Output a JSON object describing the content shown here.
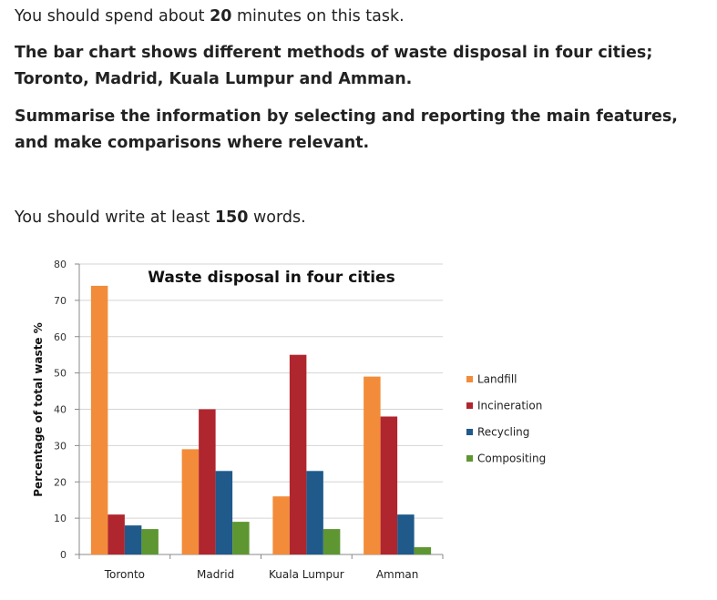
{
  "intro": {
    "before": "You should spend about ",
    "minutes": "20",
    "after": " minutes on this task."
  },
  "task": {
    "line1": "The bar chart shows different methods of waste disposal in four cities; Toronto, Madrid, Kuala Lumpur and Amman.",
    "line2": "Summarise the information by selecting and reporting the main features, and make comparisons where relevant."
  },
  "words": {
    "before": "You should write at least ",
    "count": "150",
    "after": " words."
  },
  "chart_data": {
    "type": "bar",
    "title": "Waste disposal in four cities",
    "xlabel": "",
    "ylabel": "Percentage of total waste %",
    "ylim": [
      0,
      80
    ],
    "yticks": [
      0,
      10,
      20,
      30,
      40,
      50,
      60,
      70,
      80
    ],
    "grid": true,
    "legend_position": "right",
    "categories": [
      "Toronto",
      "Madrid",
      "Kuala Lumpur",
      "Amman"
    ],
    "series": [
      {
        "name": "Landfill",
        "color": "#F28C3A",
        "values": [
          74,
          29,
          16,
          49
        ]
      },
      {
        "name": "Incineration",
        "color": "#B0262E",
        "values": [
          11,
          40,
          55,
          38
        ]
      },
      {
        "name": "Recycling",
        "color": "#1F5A8B",
        "values": [
          8,
          23,
          23,
          11
        ]
      },
      {
        "name": "Compositing",
        "color": "#5E9632",
        "values": [
          7,
          9,
          7,
          2
        ]
      }
    ]
  }
}
